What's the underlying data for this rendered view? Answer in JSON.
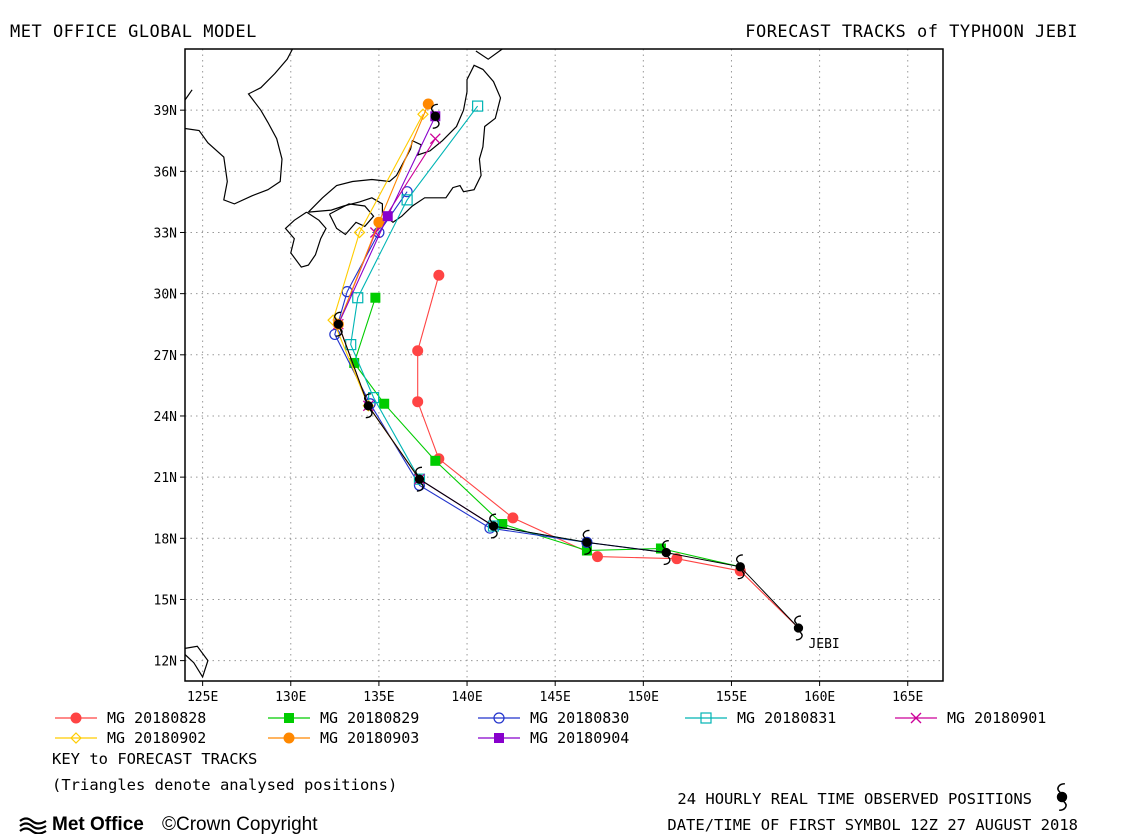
{
  "header": {
    "left_title": "MET OFFICE GLOBAL MODEL",
    "right_title": "FORECAST TRACKS of TYPHOON JEBI"
  },
  "map": {
    "lon_range": [
      124,
      167
    ],
    "lat_range": [
      11,
      42
    ],
    "lon_ticks": [
      125,
      130,
      135,
      140,
      145,
      150,
      155,
      160,
      165
    ],
    "lon_tick_labels": [
      "125E",
      "130E",
      "135E",
      "140E",
      "145E",
      "150E",
      "155E",
      "160E",
      "165E"
    ],
    "lat_ticks": [
      12,
      15,
      18,
      21,
      24,
      27,
      30,
      33,
      36,
      39
    ],
    "lat_tick_labels": [
      "12N",
      "15N",
      "18N",
      "21N",
      "24N",
      "27N",
      "30N",
      "33N",
      "36N",
      "39N"
    ],
    "storm_label": "JEBI"
  },
  "observed_track": {
    "color": "#000000",
    "points": [
      [
        158.8,
        13.6
      ],
      [
        155.5,
        16.6
      ],
      [
        151.3,
        17.3
      ],
      [
        146.8,
        17.8
      ],
      [
        141.5,
        18.6
      ],
      [
        137.3,
        20.9
      ],
      [
        134.4,
        24.5
      ],
      [
        132.7,
        28.5
      ],
      [
        138.2,
        38.7
      ]
    ]
  },
  "forecast_tracks": [
    {
      "name": "MG 20180828",
      "color": "#ff4444",
      "marker": "circle-filled",
      "points": [
        [
          158.8,
          13.6
        ],
        [
          155.5,
          16.4
        ],
        [
          151.9,
          17.0
        ],
        [
          147.4,
          17.1
        ],
        [
          142.6,
          19.0
        ],
        [
          138.4,
          21.9
        ],
        [
          137.2,
          24.7
        ],
        [
          137.2,
          27.2
        ],
        [
          138.4,
          30.9
        ]
      ]
    },
    {
      "name": "MG 20180829",
      "color": "#00cc00",
      "marker": "square-filled",
      "points": [
        [
          155.5,
          16.6
        ],
        [
          151.0,
          17.5
        ],
        [
          146.8,
          17.4
        ],
        [
          142.0,
          18.7
        ],
        [
          138.2,
          21.8
        ],
        [
          135.3,
          24.6
        ],
        [
          133.6,
          26.6
        ],
        [
          134.8,
          29.8
        ]
      ]
    },
    {
      "name": "MG 20180830",
      "color": "#2233cc",
      "marker": "circle-open",
      "points": [
        [
          151.3,
          17.3
        ],
        [
          146.8,
          17.8
        ],
        [
          141.3,
          18.5
        ],
        [
          137.3,
          20.6
        ],
        [
          134.5,
          24.6
        ],
        [
          132.5,
          28.0
        ],
        [
          133.2,
          30.1
        ],
        [
          135.0,
          33.0
        ],
        [
          136.6,
          35.0
        ]
      ]
    },
    {
      "name": "MG 20180831",
      "color": "#00b5b5",
      "marker": "square-open",
      "points": [
        [
          146.8,
          17.8
        ],
        [
          141.5,
          18.6
        ],
        [
          137.3,
          20.9
        ],
        [
          134.7,
          24.9
        ],
        [
          133.4,
          27.5
        ],
        [
          133.8,
          29.8
        ],
        [
          136.6,
          34.6
        ],
        [
          140.6,
          39.2
        ]
      ]
    },
    {
      "name": "MG 20180901",
      "color": "#cc0099",
      "marker": "cross",
      "points": [
        [
          141.5,
          18.6
        ],
        [
          137.3,
          20.9
        ],
        [
          134.4,
          24.5
        ],
        [
          132.7,
          28.5
        ],
        [
          134.8,
          33.0
        ],
        [
          138.2,
          37.6
        ]
      ]
    },
    {
      "name": "MG 20180902",
      "color": "#ffcc00",
      "marker": "diamond-open",
      "points": [
        [
          137.3,
          20.9
        ],
        [
          134.4,
          24.5
        ],
        [
          132.4,
          28.7
        ],
        [
          133.9,
          33.0
        ],
        [
          137.5,
          38.8
        ]
      ]
    },
    {
      "name": "MG 20180903",
      "color": "#ff8800",
      "marker": "circle-filled",
      "points": [
        [
          134.4,
          24.5
        ],
        [
          132.7,
          28.5
        ],
        [
          135.0,
          33.5
        ],
        [
          137.8,
          39.3
        ]
      ]
    },
    {
      "name": "MG 20180904",
      "color": "#8800cc",
      "marker": "square-filled",
      "points": [
        [
          132.7,
          28.5
        ],
        [
          135.5,
          33.8
        ],
        [
          138.2,
          38.7
        ]
      ]
    }
  ],
  "legend": {
    "key_title": "KEY to FORECAST TRACKS",
    "key_subtitle": "(Triangles denote analysed positions)"
  },
  "footer": {
    "observed_label": "24 HOURLY REAL TIME OBSERVED POSITIONS",
    "date_label": "DATE/TIME OF FIRST SYMBOL 12Z 27 AUGUST 2018",
    "logo_text": "Met Office",
    "copyright": "©Crown Copyright"
  }
}
